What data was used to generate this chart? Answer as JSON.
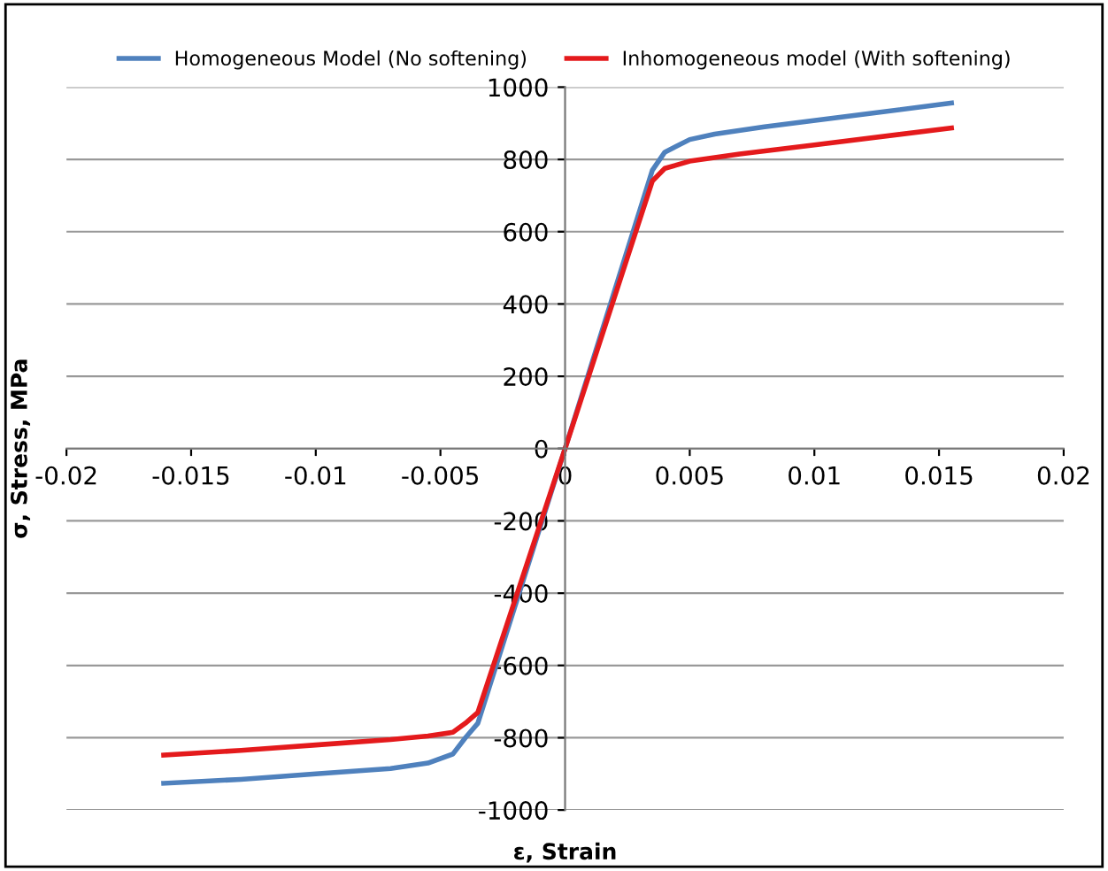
{
  "chart_data": {
    "type": "line",
    "xlabel": "ε, Strain",
    "ylabel": "σ, Stress, MPa",
    "xlim": [
      -0.02,
      0.02
    ],
    "xticks": [
      -0.02,
      -0.015,
      -0.01,
      -0.005,
      0,
      0.005,
      0.01,
      0.015,
      0.02
    ],
    "ylim": [
      -1000,
      1000
    ],
    "yticks": [
      -1000,
      -800,
      -600,
      -400,
      -200,
      0,
      200,
      400,
      600,
      800,
      1000
    ],
    "grid": "y",
    "legend": "top",
    "line_style": "solid",
    "marker": "none",
    "series": [
      {
        "name": "Homogeneous Model (No softening)",
        "color": "#4f81bd",
        "x": [
          -0.0161,
          -0.013,
          -0.01,
          -0.007,
          -0.0055,
          -0.0045,
          -0.004,
          -0.0035,
          0,
          0.0035,
          0.004,
          0.005,
          0.006,
          0.008,
          0.012,
          0.0155
        ],
        "values": [
          -926,
          -915,
          -900,
          -885,
          -870,
          -845,
          -800,
          -760,
          0,
          770,
          820,
          855,
          870,
          890,
          925,
          956
        ]
      },
      {
        "name": "Inhomogeneous model (With softening)",
        "color": "#e41a1c",
        "x": [
          -0.0161,
          -0.013,
          -0.01,
          -0.007,
          -0.0055,
          -0.0045,
          -0.004,
          -0.0035,
          0,
          0.0035,
          0.004,
          0.005,
          0.007,
          0.01,
          0.0155
        ],
        "values": [
          -848,
          -835,
          -820,
          -805,
          -795,
          -785,
          -760,
          -730,
          0,
          740,
          775,
          795,
          815,
          840,
          887
        ]
      }
    ]
  }
}
